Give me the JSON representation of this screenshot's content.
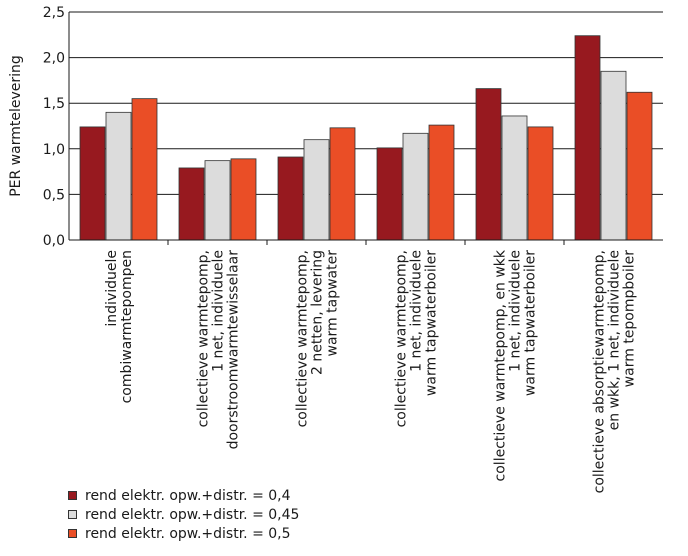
{
  "chart_data": {
    "type": "bar",
    "ylabel": "PER warmtelevering",
    "ylim": [
      0,
      2.5
    ],
    "yticks": [
      "0,0",
      "0,5",
      "1,0",
      "1,5",
      "2,0",
      "2,5"
    ],
    "grid": true,
    "categories": [
      [
        "individuele",
        "combiwarmtepompen"
      ],
      [
        "collectieve warmtepomp,",
        "1 net, individuele",
        "doorstroomwarmtewisselaar"
      ],
      [
        "collectieve warmtepomp,",
        "2 netten, levering",
        "warm tapwater"
      ],
      [
        "collectieve warmtepomp,",
        "1 net, individuele",
        "warm tapwaterboiler"
      ],
      [
        "collectieve warmtepomp, en wkk",
        "1 net, individuele",
        "warm tapwaterboiler"
      ],
      [
        "collectieve absorptiewarmtepomp,",
        "en wkk, 1 net, individuele",
        "warm tepompboiler"
      ]
    ],
    "series": [
      {
        "name": "rend elektr. opw.+distr. = 0,4",
        "color": "#97191f",
        "values": [
          1.24,
          0.79,
          0.91,
          1.01,
          1.66,
          2.24
        ]
      },
      {
        "name": "rend elektr. opw.+distr. = 0,45",
        "color": "#dcdcdc",
        "values": [
          1.4,
          0.87,
          1.1,
          1.17,
          1.36,
          1.85
        ]
      },
      {
        "name": "rend elektr. opw.+distr. = 0,5",
        "color": "#ea4e26",
        "values": [
          1.55,
          0.89,
          1.23,
          1.26,
          1.24,
          1.62
        ]
      }
    ],
    "legend_position": "bottom-left"
  }
}
